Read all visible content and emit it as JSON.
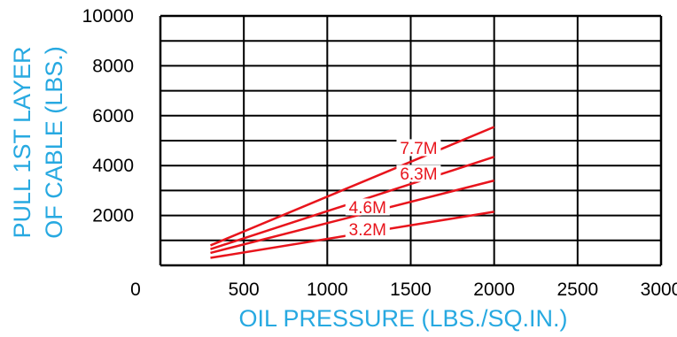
{
  "chart_data": {
    "type": "line",
    "xlabel": "OIL PRESSURE (LBS./SQ.IN.)",
    "ylabel_line1": "PULL 1ST LAYER",
    "ylabel_line2": "OF CABLE (LBS.)",
    "xlim": [
      0,
      3000
    ],
    "ylim": [
      0,
      10000
    ],
    "x_tick_labels": [
      "0",
      "500",
      "1000",
      "1500",
      "2000",
      "2500",
      "3000"
    ],
    "y_tick_labels": [
      "10000",
      "8000",
      "6000",
      "4000",
      "2000"
    ],
    "grid": true,
    "colors": {
      "series": "#e8141c",
      "axis_titles": "#27a9e1",
      "grid": "#000000"
    },
    "series": [
      {
        "name": "7.7M",
        "x": [
          300,
          2000
        ],
        "y": [
          800,
          5550
        ]
      },
      {
        "name": "6.3M",
        "x": [
          300,
          2000
        ],
        "y": [
          650,
          4350
        ]
      },
      {
        "name": "4.6M",
        "x": [
          300,
          2000
        ],
        "y": [
          500,
          3400
        ]
      },
      {
        "name": "3.2M",
        "x": [
          300,
          2000
        ],
        "y": [
          300,
          2150
        ]
      }
    ]
  }
}
